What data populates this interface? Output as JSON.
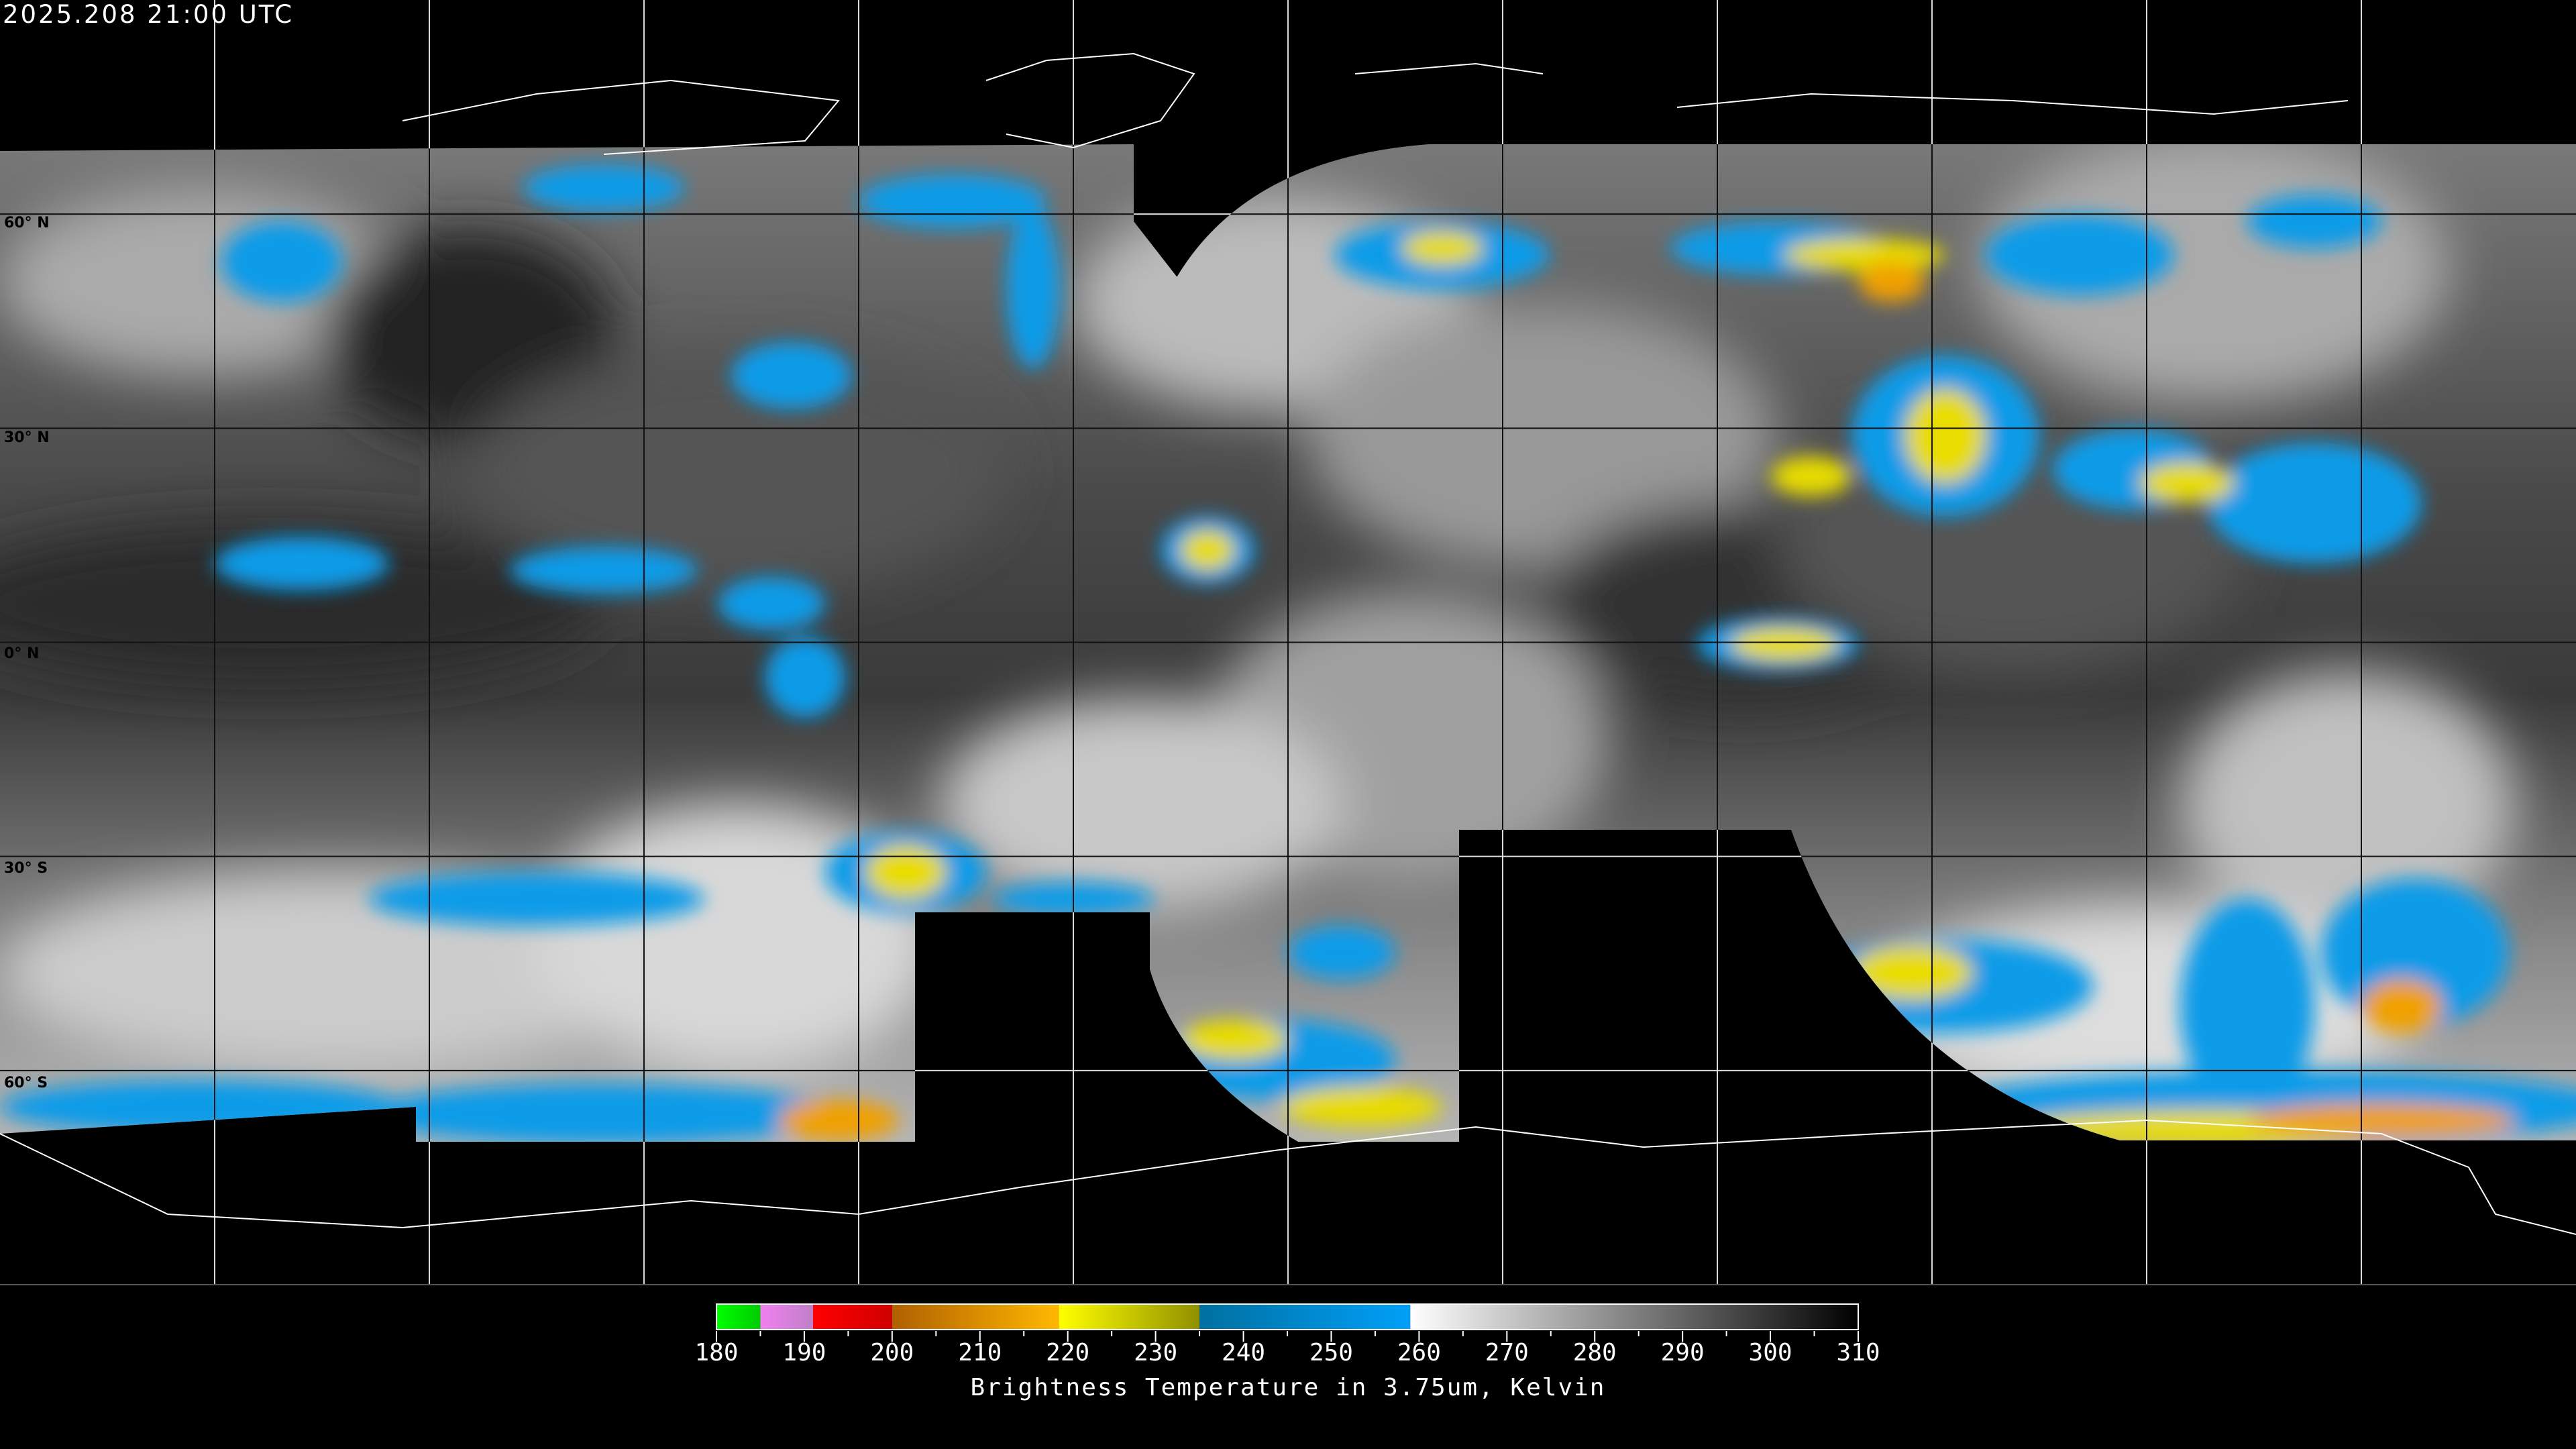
{
  "timestamp": "2025.208 21:00 UTC",
  "latitude_labels": [
    "60° N",
    "30° N",
    "0° N",
    "30° S",
    "60° S"
  ],
  "colorbar": {
    "title": "Brightness Temperature in 3.75um, Kelvin",
    "min": 180,
    "max": 310,
    "ticks": [
      "180",
      "190",
      "200",
      "210",
      "220",
      "230",
      "240",
      "250",
      "260",
      "270",
      "280",
      "290",
      "300",
      "310"
    ],
    "segments": [
      {
        "from": 180,
        "to": 185,
        "colors": [
          "#00ff00",
          "#00cc00"
        ]
      },
      {
        "from": 185,
        "to": 191,
        "colors": [
          "#f080f0",
          "#c080c8"
        ]
      },
      {
        "from": 191,
        "to": 200,
        "colors": [
          "#ff0000",
          "#d00000"
        ]
      },
      {
        "from": 200,
        "to": 219,
        "colors": [
          "#b06000",
          "#ffb800"
        ]
      },
      {
        "from": 219,
        "to": 235,
        "colors": [
          "#ffff00",
          "#909000"
        ]
      },
      {
        "from": 235,
        "to": 259,
        "colors": [
          "#0070a0",
          "#00a0f8"
        ]
      },
      {
        "from": 259,
        "to": 310,
        "colors": [
          "#ffffff",
          "#000000"
        ]
      }
    ]
  },
  "colors": {
    "background": "#000000",
    "cold_cloud_blue": "#0a9be8",
    "very_cold_yellow": "#e8dc00",
    "coldest_orange": "#f0a000"
  }
}
